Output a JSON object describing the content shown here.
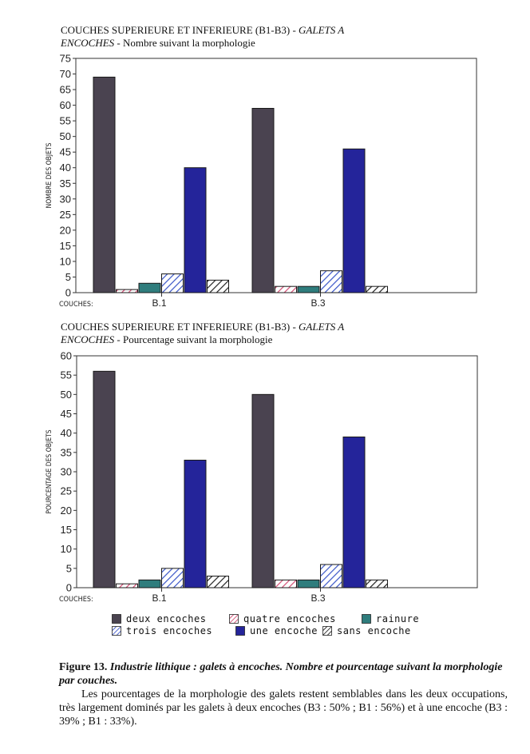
{
  "chart_data": [
    {
      "type": "bar",
      "title_plain": "COUCHES SUPERIEURE ET INFERIEURE (B1-B3) - ",
      "title_italic": "GALETS A",
      "subtitle_italic": "ENCOCHES",
      "subtitle_plain": " - Nombre suivant la morphologie",
      "ylabel": "NOMBRE DES OBJETS",
      "xlabel": "COUCHES:",
      "ylim": [
        0,
        75
      ],
      "yticks": [
        0,
        5,
        10,
        15,
        20,
        25,
        30,
        35,
        40,
        45,
        50,
        55,
        60,
        65,
        70,
        75
      ],
      "categories": [
        "B.1",
        "B.3"
      ],
      "series": [
        {
          "name": "deux encoches",
          "values": [
            69,
            59
          ]
        },
        {
          "name": "quatre encoches",
          "values": [
            1,
            2
          ]
        },
        {
          "name": "rainure",
          "values": [
            3,
            2
          ]
        },
        {
          "name": "trois encoches",
          "values": [
            6,
            7
          ]
        },
        {
          "name": "une encoche",
          "values": [
            40,
            46
          ]
        },
        {
          "name": "sans encoche",
          "values": [
            4,
            2
          ]
        }
      ]
    },
    {
      "type": "bar",
      "title_plain": "COUCHES SUPERIEURE ET INFERIEURE (B1-B3) - ",
      "title_italic": "GALETS A",
      "subtitle_italic": "ENCOCHES",
      "subtitle_plain": " - Pourcentage suivant la morphologie",
      "ylabel": "POURCENTAGE DES OBJETS",
      "xlabel": "COUCHES:",
      "ylim": [
        0,
        60
      ],
      "yticks": [
        0,
        5,
        10,
        15,
        20,
        25,
        30,
        35,
        40,
        45,
        50,
        55,
        60
      ],
      "categories": [
        "B.1",
        "B.3"
      ],
      "series": [
        {
          "name": "deux encoches",
          "values": [
            56,
            50
          ]
        },
        {
          "name": "quatre encoches",
          "values": [
            1,
            2
          ]
        },
        {
          "name": "rainure",
          "values": [
            2,
            2
          ]
        },
        {
          "name": "trois encoches",
          "values": [
            5,
            6
          ]
        },
        {
          "name": "une encoche",
          "values": [
            33,
            39
          ]
        },
        {
          "name": "sans encoche",
          "values": [
            3,
            2
          ]
        }
      ]
    }
  ],
  "styles": {
    "deux encoches": {
      "fill": "#4a4350",
      "pattern": "solid"
    },
    "quatre encoches": {
      "fill": "#d24b72",
      "pattern": "hatch"
    },
    "rainure": {
      "fill": "#2f7d7d",
      "pattern": "solid"
    },
    "trois encoches": {
      "fill": "#3a56c8",
      "pattern": "hatch"
    },
    "une encoche": {
      "fill": "#24249a",
      "pattern": "solid"
    },
    "sans encoche": {
      "fill": "#222222",
      "pattern": "hatch"
    }
  },
  "legend": [
    {
      "key": "deux encoches",
      "label": "deux encoches"
    },
    {
      "key": "quatre encoches",
      "label": "quatre encoches"
    },
    {
      "key": "rainure",
      "label": "rainure"
    },
    {
      "key": "trois encoches",
      "label": "trois encoches"
    },
    {
      "key": "une encoche",
      "label": "une encoche"
    },
    {
      "key": "sans encoche",
      "label": "sans encoche"
    }
  ],
  "caption": {
    "figure": "Figure 13",
    "sep": ". ",
    "heading": "Industrie lithique : galets à encoches. Nombre et pourcentage suivant la morphologie par couches.",
    "body": "Les pourcentages de la morphologie des galets restent semblables dans les deux occupations, très largement dominés par les galets à deux encoches (B3 : 50% ; B1 : 56%) et à une encoche (B3 : 39% ; B1 : 33%)."
  }
}
